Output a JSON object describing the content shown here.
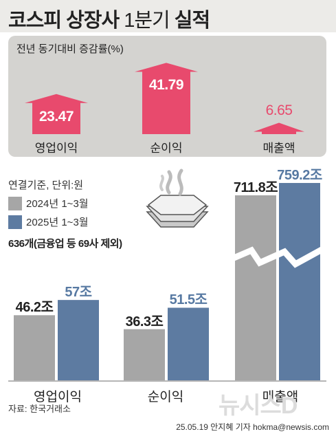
{
  "title": {
    "bold": "코스피 상장사",
    "light": "1분기",
    "bold2": "실적"
  },
  "yoy": {
    "header": "전년 동기대비 증감률(%)",
    "items": [
      {
        "label": "영업이익",
        "value": 23.47,
        "value_text": "23.47"
      },
      {
        "label": "순이익",
        "value": 41.79,
        "value_text": "41.79"
      },
      {
        "label": "매출액",
        "value": 6.65,
        "value_text": "6.65"
      }
    ],
    "color": "#e84a6d"
  },
  "legend": {
    "basis": "연결기준, 단위:원",
    "items": [
      {
        "label": "2024년 1~3월",
        "color": "#a6a6a6"
      },
      {
        "label": "2025년 1~3월",
        "color": "#5d7ba1"
      }
    ]
  },
  "note": "636개(금융업 등 69사 제외)",
  "chart_data": {
    "type": "bar",
    "categories": [
      "영업이익",
      "순이익",
      "매출액"
    ],
    "series": [
      {
        "name": "2024년 1~3월",
        "values": [
          46.2,
          36.3,
          711.8
        ],
        "labels": [
          "46.2조",
          "36.3조",
          "711.8조"
        ],
        "color": "#a6a6a6"
      },
      {
        "name": "2025년 1~3월",
        "values": [
          57,
          51.5,
          759.2
        ],
        "labels": [
          "57조",
          "51.5조",
          "759.2조"
        ],
        "color": "#5d7ba1"
      }
    ],
    "axis_break": "매출액"
  },
  "source": "자료: 한국거래소",
  "credit": "25.05.19 안지혜 기자 hokma@newsis.com",
  "watermark": "뉴시스D"
}
